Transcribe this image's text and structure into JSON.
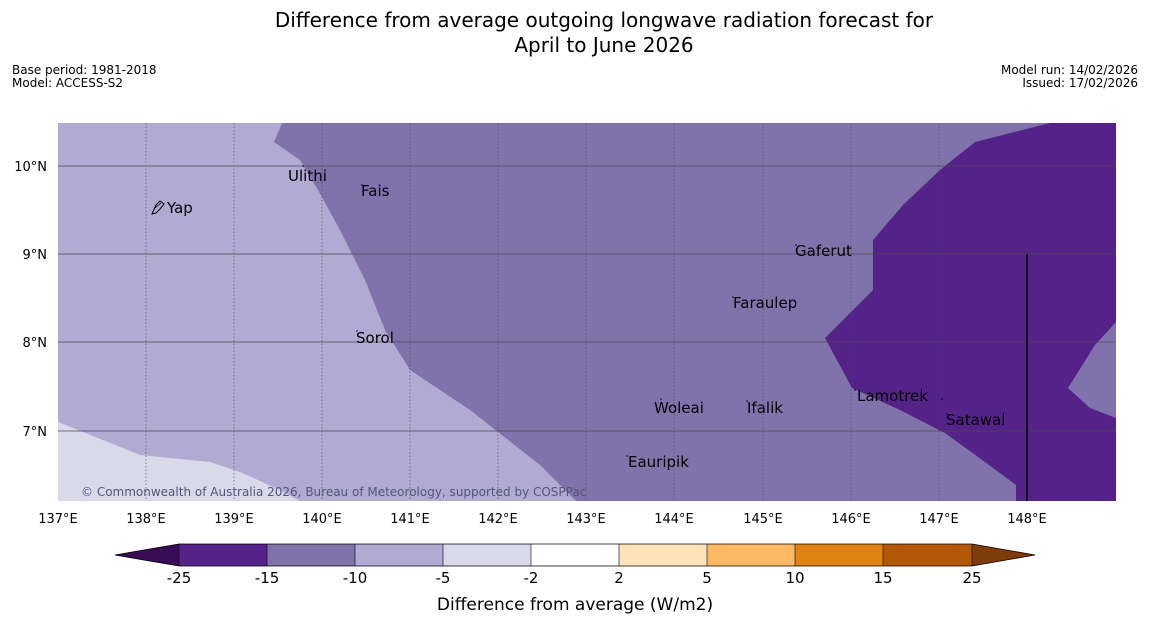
{
  "title_line1": "Difference from average outgoing longwave radiation forecast for",
  "title_line2": "April to June 2026",
  "base_period": "Base period: 1981-2018",
  "model": "Model: ACCESS-S2",
  "model_run": "Model run: 14/02/2026",
  "issued": "Issued: 17/02/2026",
  "copyright": "© Commonwealth of Australia 2026, Bureau of Meteorology, supported by COSPPac",
  "x_ticks": [
    "137°E",
    "138°E",
    "139°E",
    "140°E",
    "141°E",
    "142°E",
    "143°E",
    "144°E",
    "145°E",
    "146°E",
    "147°E",
    "148°E"
  ],
  "y_ticks": [
    "10°N",
    "9°N",
    "8°N",
    "7°N"
  ],
  "places": [
    {
      "name": "Ulithi"
    },
    {
      "name": "Fais"
    },
    {
      "name": "Yap"
    },
    {
      "name": "Gaferut"
    },
    {
      "name": "Faraulep"
    },
    {
      "name": "Sorol"
    },
    {
      "name": "Lamotrek"
    },
    {
      "name": "Satawal"
    },
    {
      "name": "Woleai"
    },
    {
      "name": "Ifalik"
    },
    {
      "name": "Eauripik"
    }
  ],
  "colorbar": {
    "label": "Difference from average (W/m2)",
    "ticks": [
      "-25",
      "-15",
      "-10",
      "-5",
      "-2",
      "2",
      "5",
      "10",
      "15",
      "25"
    ],
    "colors": {
      "under": "#3a0b57",
      "b1": "#55228a",
      "b2": "#8073ab",
      "b3": "#b1aad2",
      "b4": "#d9d9e9",
      "b5": "#ffffff",
      "b6": "#fee2b8",
      "b7": "#fdb863",
      "b8": "#e08214",
      "b9": "#b35806",
      "over": "#7f3b08"
    }
  }
}
